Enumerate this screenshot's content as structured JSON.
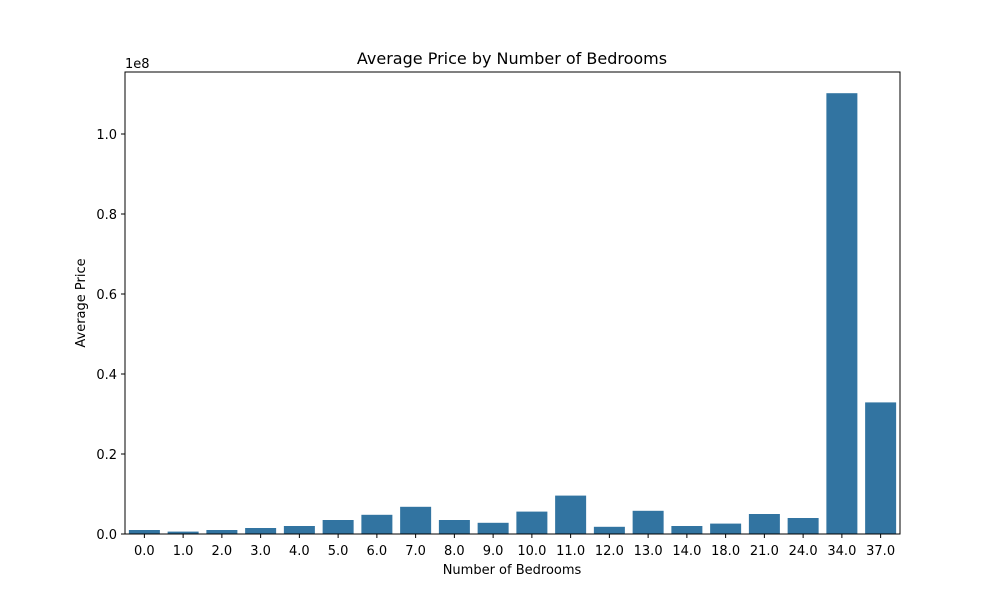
{
  "chart_data": {
    "type": "bar",
    "title": "Average Price by Number of Bedrooms",
    "xlabel": "Number of Bedrooms",
    "ylabel": "Average Price",
    "y_offset_label": "1e8",
    "y_scale": 100000000,
    "categories": [
      "0.0",
      "1.0",
      "2.0",
      "3.0",
      "4.0",
      "5.0",
      "6.0",
      "7.0",
      "8.0",
      "9.0",
      "10.0",
      "11.0",
      "12.0",
      "13.0",
      "14.0",
      "18.0",
      "21.0",
      "24.0",
      "34.0",
      "37.0"
    ],
    "values": [
      1000000,
      600000,
      1000000,
      1500000,
      2000000,
      3500000,
      4800000,
      6800000,
      3500000,
      2800000,
      5600000,
      9600000,
      1800000,
      5800000,
      2000000,
      2600000,
      5000000,
      4000000,
      110200000,
      32900000
    ],
    "ylim": [
      0,
      115500000
    ],
    "yticks": [
      "0.0",
      "0.2",
      "0.4",
      "0.6",
      "0.8",
      "1.0"
    ],
    "ytick_values": [
      0,
      20000000,
      40000000,
      60000000,
      80000000,
      100000000
    ],
    "bar_color": "#3274a1",
    "grid": false,
    "legend": false
  }
}
